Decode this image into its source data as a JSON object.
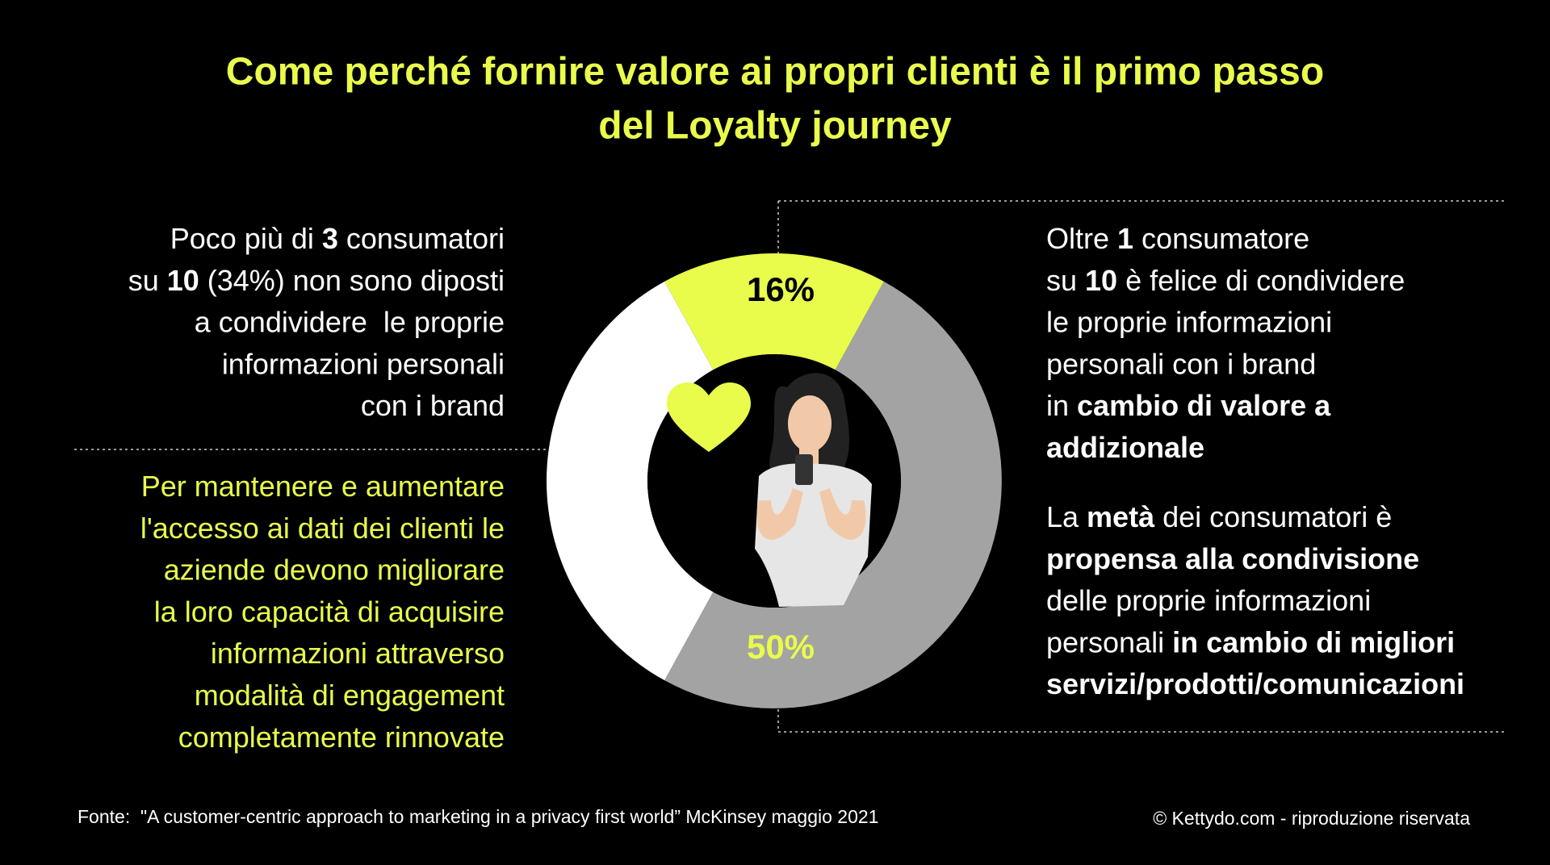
{
  "title": [
    "Come perché fornire valore ai propri clienti è il primo passo",
    "del Loyalty journey"
  ],
  "chart_data": {
    "type": "donut",
    "values": [
      16,
      50,
      34
    ],
    "value_labels": [
      "16%",
      "50%",
      null
    ],
    "colors": [
      "#e9fb4b",
      "#a3a3a3",
      "#ffffff"
    ],
    "label_colors": [
      "#000000",
      "#e9fb4b",
      null
    ]
  },
  "left_top": {
    "color": "#ffffff",
    "lines": [
      [
        {
          "t": "Poco più di "
        },
        {
          "t": "3",
          "b": true
        },
        {
          "t": " consumatori"
        }
      ],
      [
        {
          "t": "su "
        },
        {
          "t": "10",
          "b": true
        },
        {
          "t": " (34%) non sono diposti"
        }
      ],
      [
        {
          "t": "a condividere  le proprie"
        }
      ],
      [
        {
          "t": "informazioni personali"
        }
      ],
      [
        {
          "t": "con i brand"
        }
      ]
    ]
  },
  "left_bottom": {
    "color": "#e9fb4b",
    "lines": [
      [
        {
          "t": "Per mantenere e aumentare"
        }
      ],
      [
        {
          "t": "l'accesso ai dati dei clienti le"
        }
      ],
      [
        {
          "t": "aziende devono migliorare"
        }
      ],
      [
        {
          "t": "la loro capacità di acquisire"
        }
      ],
      [
        {
          "t": "informazioni attraverso"
        }
      ],
      [
        {
          "t": "modalità di engagement"
        }
      ],
      [
        {
          "t": "completamente rinnovate"
        }
      ]
    ]
  },
  "right_top": {
    "color": "#ffffff",
    "lines": [
      [
        {
          "t": "Oltre "
        },
        {
          "t": "1",
          "b": true
        },
        {
          "t": " consumatore"
        }
      ],
      [
        {
          "t": "su "
        },
        {
          "t": "10",
          "b": true
        },
        {
          "t": " è felice di condividere"
        }
      ],
      [
        {
          "t": "le proprie informazioni"
        }
      ],
      [
        {
          "t": "personali con i brand"
        }
      ],
      [
        {
          "t": "in "
        },
        {
          "t": "cambio di valore a",
          "b": true
        }
      ],
      [
        {
          "t": "addizionale",
          "b": true
        }
      ]
    ]
  },
  "right_bottom": {
    "color": "#ffffff",
    "lines": [
      [
        {
          "t": "La "
        },
        {
          "t": "metà",
          "b": true
        },
        {
          "t": " dei consumatori è"
        }
      ],
      [
        {
          "t": "propensa alla condivisione",
          "b": true
        }
      ],
      [
        {
          "t": "delle proprie informazioni"
        }
      ],
      [
        {
          "t": "personali "
        },
        {
          "t": "in cambio di migliori",
          "b": true
        }
      ],
      [
        {
          "t": "servizi/prodotti/comunicazioni",
          "b": true
        }
      ]
    ]
  },
  "footer": {
    "source": "Fonte:  \"A customer-centric approach to marketing in a privacy first world” McKinsey maggio 2021",
    "copyright": "© Kettydo.com - riproduzione riservata"
  }
}
